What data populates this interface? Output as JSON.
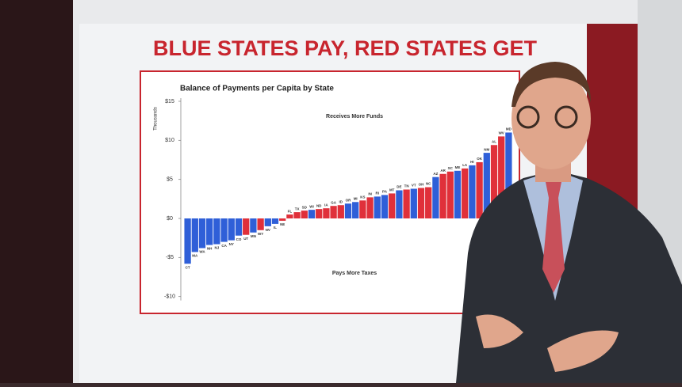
{
  "chart_data": {
    "type": "bar",
    "headline": "BLUE STATES PAY, RED STATES GET",
    "title": "Balance of Payments per Capita by State",
    "y_label": "Thousands",
    "annotations": [
      "Receives More Funds",
      "Pays More Taxes"
    ],
    "categories": [
      "CT",
      "MA",
      "WA",
      "NH",
      "NJ",
      "CA",
      "NY",
      "CO",
      "UT",
      "MN",
      "WY",
      "NV",
      "IL",
      "NE",
      "FL",
      "TX",
      "SD",
      "WI",
      "ND",
      "IA",
      "GA",
      "ID",
      "OR",
      "MI",
      "KS",
      "IN",
      "RI",
      "PA",
      "MT",
      "DE",
      "TN",
      "VT",
      "OH",
      "NC",
      "AZ",
      "AR",
      "SC",
      "ME",
      "LA",
      "HI",
      "OK",
      "NM",
      "AL",
      "WV",
      "MD"
    ],
    "values": [
      -5.8,
      -4.3,
      -3.8,
      -3.4,
      -3.3,
      -3.0,
      -2.8,
      -2.2,
      -2.1,
      -1.8,
      -1.5,
      -1.0,
      -0.7,
      -0.3,
      0.5,
      0.8,
      1.0,
      1.1,
      1.2,
      1.3,
      1.6,
      1.7,
      1.9,
      2.1,
      2.3,
      2.7,
      2.8,
      3.0,
      3.2,
      3.6,
      3.7,
      3.8,
      3.9,
      4.0,
      5.3,
      5.7,
      6.0,
      6.1,
      6.4,
      6.8,
      7.2,
      8.4,
      9.4,
      10.5,
      11.0
    ],
    "colors": [
      "#2f5fd8",
      "#2f5fd8",
      "#2f5fd8",
      "#2f5fd8",
      "#2f5fd8",
      "#2f5fd8",
      "#2f5fd8",
      "#2f5fd8",
      "#e0303a",
      "#2f5fd8",
      "#e0303a",
      "#2f5fd8",
      "#2f5fd8",
      "#e0303a",
      "#e0303a",
      "#e0303a",
      "#e0303a",
      "#2f5fd8",
      "#e0303a",
      "#e0303a",
      "#e0303a",
      "#e0303a",
      "#2f5fd8",
      "#2f5fd8",
      "#e0303a",
      "#e0303a",
      "#2f5fd8",
      "#2f5fd8",
      "#e0303a",
      "#2f5fd8",
      "#e0303a",
      "#2f5fd8",
      "#e0303a",
      "#e0303a",
      "#2f5fd8",
      "#e0303a",
      "#e0303a",
      "#2f5fd8",
      "#e0303a",
      "#2f5fd8",
      "#e0303a",
      "#2f5fd8",
      "#e0303a",
      "#e0303a",
      "#2f5fd8"
    ],
    "ylim": [
      -10.5,
      15
    ],
    "yticks": [
      {
        "value": 15,
        "label": "$15"
      },
      {
        "value": 10,
        "label": "$10"
      },
      {
        "value": 5,
        "label": "$5"
      },
      {
        "value": 0,
        "label": "$0"
      },
      {
        "value": -5,
        "label": "-$5"
      },
      {
        "value": -10,
        "label": "-$10"
      }
    ]
  }
}
